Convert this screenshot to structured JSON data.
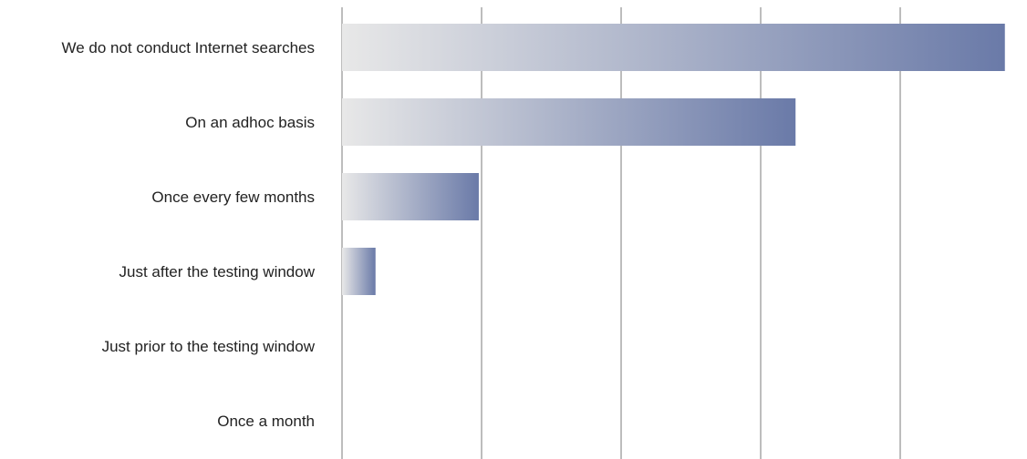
{
  "chart_data": {
    "type": "bar",
    "orientation": "horizontal",
    "categories": [
      "We do not conduct Internet searches",
      "On an adhoc basis",
      "Once every few months",
      "Just after the testing window",
      "Just prior to the testing window",
      "Once a month"
    ],
    "values": [
      47.5,
      32.5,
      9.8,
      2.4,
      0,
      0
    ],
    "xlim": [
      0,
      50
    ],
    "x_gridlines": [
      0,
      10,
      20,
      30,
      40
    ],
    "x_tick_labels_shown": false,
    "grid": true,
    "legend": "none",
    "title": "",
    "xlabel": "",
    "ylabel": ""
  },
  "colors": {
    "bar_start": "#e8e8e8",
    "bar_end": "#6a7aa8",
    "gridline": "#bdbdbd",
    "label_text": "#222222"
  }
}
